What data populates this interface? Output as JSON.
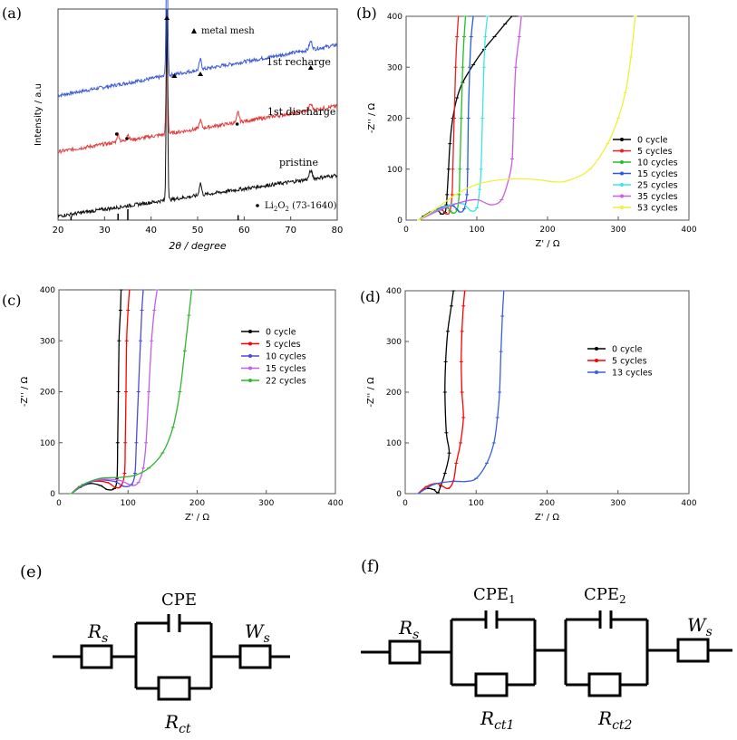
{
  "figure": {
    "panel_labels": [
      "(a)",
      "(b)",
      "(c)",
      "(d)",
      "(e)",
      "(f)"
    ]
  },
  "chart_data": [
    {
      "panel": "(a)",
      "type": "line",
      "title": "",
      "xlabel": "2θ / degree",
      "ylabel": "Intensity / a.u",
      "xlim": [
        20,
        80
      ],
      "xticks": [
        20,
        30,
        40,
        50,
        60,
        70,
        80
      ],
      "series": [
        {
          "name": "1st recharge",
          "color": "#3b5bd6",
          "offset": 0.62,
          "slope": 0.0042,
          "peaks": [
            [
              43.4,
              0.62,
              0.25
            ],
            [
              50.6,
              0.05,
              0.35
            ],
            [
              74.3,
              0.04,
              0.45
            ]
          ]
        },
        {
          "name": "1st discharge",
          "color": "#e03c3c",
          "offset": 0.34,
          "slope": 0.0038,
          "peaks": [
            [
              32.9,
              0.04,
              0.35
            ],
            [
              35.0,
              0.03,
              0.35
            ],
            [
              43.4,
              0.45,
              0.25
            ],
            [
              50.6,
              0.04,
              0.35
            ],
            [
              58.7,
              0.05,
              0.35
            ],
            [
              74.3,
              0.03,
              0.45
            ]
          ]
        },
        {
          "name": "pristine",
          "color": "#111111",
          "offset": 0.02,
          "slope": 0.0034,
          "peaks": [
            [
              43.4,
              0.95,
              0.22
            ],
            [
              50.6,
              0.06,
              0.35
            ],
            [
              74.3,
              0.04,
              0.45
            ]
          ]
        }
      ],
      "reference_lines": {
        "name": "Li2O2 (73-1640)",
        "positions": [
          22.8,
          32.9,
          35.0,
          58.7
        ],
        "heights": [
          0.35,
          0.6,
          1.0,
          0.45
        ]
      },
      "annotations": {
        "legend_mesh": "metal mesh",
        "legend_li2o2_prefix": "Li",
        "legend_li2o2_sub1": "2",
        "legend_li2o2_mid": "O",
        "legend_li2o2_sub2": "2",
        "legend_li2o2_suffix": " (73-1640)",
        "mesh_markers": [
          [
            43.4,
            "top"
          ],
          [
            45.0,
            "recharge"
          ],
          [
            50.6,
            "recharge"
          ],
          [
            74.3,
            "recharge"
          ]
        ],
        "li2o2_markers": [
          [
            32.6,
            "discharge"
          ],
          [
            34.8,
            "discharge"
          ],
          [
            58.5,
            "discharge"
          ]
        ]
      }
    },
    {
      "panel": "(b)",
      "type": "line",
      "xlabel": "Z' / Ω",
      "ylabel": "-Z'' / Ω",
      "xlim": [
        0,
        400
      ],
      "ylim": [
        0,
        400
      ],
      "xticks": [
        0,
        100,
        200,
        300,
        400
      ],
      "yticks": [
        0,
        100,
        200,
        300,
        400
      ],
      "series": [
        {
          "name": "0 cycle",
          "color": "#000000",
          "x": [
            18,
            25,
            35,
            45,
            50,
            55,
            57,
            58,
            60,
            62,
            66,
            72,
            80,
            95,
            110,
            125,
            140,
            150,
            155
          ],
          "y": [
            0,
            8,
            16,
            18,
            12,
            15,
            30,
            50,
            100,
            150,
            200,
            240,
            270,
            305,
            335,
            360,
            385,
            400,
            400
          ]
        },
        {
          "name": "5 cycles",
          "color": "#e82020",
          "x": [
            18,
            28,
            40,
            50,
            58,
            62,
            65,
            66,
            68,
            70,
            72,
            74
          ],
          "y": [
            0,
            10,
            18,
            20,
            12,
            18,
            50,
            100,
            200,
            300,
            360,
            400
          ]
        },
        {
          "name": "10 cycles",
          "color": "#22c122",
          "x": [
            18,
            30,
            45,
            58,
            66,
            72,
            75,
            76,
            78,
            80,
            82,
            84
          ],
          "y": [
            0,
            12,
            22,
            24,
            14,
            20,
            50,
            100,
            200,
            300,
            360,
            400
          ]
        },
        {
          "name": "15 cycles",
          "color": "#2b5ad6",
          "x": [
            18,
            35,
            52,
            66,
            76,
            82,
            86,
            87,
            88,
            90,
            92,
            95
          ],
          "y": [
            0,
            14,
            26,
            28,
            16,
            22,
            50,
            100,
            200,
            300,
            360,
            400
          ]
        },
        {
          "name": "25 cycles",
          "color": "#3de6e6",
          "x": [
            18,
            40,
            62,
            80,
            92,
            100,
            104,
            106,
            108,
            110,
            112,
            115
          ],
          "y": [
            0,
            16,
            30,
            32,
            18,
            24,
            60,
            100,
            200,
            300,
            360,
            400
          ]
        },
        {
          "name": "35 cycles",
          "color": "#c85ee0",
          "x": [
            18,
            45,
            75,
            100,
            120,
            135,
            145,
            150,
            152,
            155,
            160,
            163
          ],
          "y": [
            0,
            18,
            34,
            40,
            30,
            40,
            80,
            120,
            200,
            300,
            360,
            400
          ]
        },
        {
          "name": "53 cycles",
          "color": "#f0f03c",
          "x": [
            18,
            40,
            70,
            100,
            140,
            180,
            210,
            230,
            260,
            285,
            300,
            310,
            318,
            324
          ],
          "y": [
            0,
            20,
            50,
            70,
            80,
            80,
            75,
            78,
            100,
            150,
            200,
            250,
            320,
            400
          ]
        }
      ]
    },
    {
      "panel": "(c)",
      "type": "line",
      "xlabel": "Z' / Ω",
      "ylabel": "-Z'' / Ω",
      "xlim": [
        0,
        400
      ],
      "ylim": [
        0,
        400
      ],
      "xticks": [
        0,
        100,
        200,
        300,
        400
      ],
      "yticks": [
        0,
        100,
        200,
        300,
        400
      ],
      "series": [
        {
          "name": "0 cycle",
          "color": "#000000",
          "x": [
            18,
            30,
            45,
            60,
            70,
            80,
            84,
            85,
            86,
            87,
            89,
            90
          ],
          "y": [
            0,
            12,
            20,
            16,
            8,
            10,
            30,
            100,
            200,
            300,
            360,
            400
          ]
        },
        {
          "name": "5 cycles",
          "color": "#ff0000",
          "x": [
            18,
            30,
            50,
            70,
            82,
            90,
            95,
            96,
            97,
            98,
            100,
            102
          ],
          "y": [
            0,
            14,
            24,
            22,
            12,
            15,
            40,
            100,
            200,
            300,
            360,
            400
          ]
        },
        {
          "name": "10 cycles",
          "color": "#4a4adf",
          "x": [
            18,
            35,
            55,
            80,
            95,
            105,
            110,
            112,
            115,
            118,
            120,
            122
          ],
          "y": [
            0,
            16,
            26,
            24,
            14,
            18,
            40,
            100,
            200,
            300,
            360,
            400
          ]
        },
        {
          "name": "15 cycles",
          "color": "#c060e8",
          "x": [
            18,
            35,
            60,
            88,
            105,
            115,
            122,
            126,
            130,
            134,
            138,
            142
          ],
          "y": [
            0,
            18,
            28,
            26,
            16,
            22,
            50,
            100,
            200,
            300,
            360,
            400
          ]
        },
        {
          "name": "22 cycles",
          "color": "#2fb52f",
          "x": [
            18,
            35,
            60,
            90,
            110,
            130,
            150,
            165,
            175,
            182,
            188,
            192
          ],
          "y": [
            0,
            18,
            30,
            32,
            36,
            50,
            80,
            130,
            200,
            280,
            350,
            400
          ]
        }
      ]
    },
    {
      "panel": "(d)",
      "type": "line",
      "xlabel": "Z' / Ω",
      "ylabel": "-Z'' / Ω",
      "xlim": [
        0,
        400
      ],
      "ylim": [
        0,
        400
      ],
      "xticks": [
        0,
        100,
        200,
        300,
        400
      ],
      "yticks": [
        0,
        100,
        200,
        300,
        400
      ],
      "series": [
        {
          "name": "0 cycle",
          "color": "#000000",
          "x": [
            18,
            30,
            40,
            46,
            50,
            56,
            62,
            58,
            56,
            57,
            60,
            65,
            68
          ],
          "y": [
            0,
            10,
            8,
            2,
            15,
            40,
            80,
            120,
            200,
            260,
            320,
            370,
            400
          ]
        },
        {
          "name": "5 cycles",
          "color": "#ff0000",
          "x": [
            18,
            30,
            45,
            60,
            68,
            72,
            78,
            82,
            80,
            79,
            80,
            82,
            84
          ],
          "y": [
            0,
            14,
            20,
            10,
            25,
            60,
            100,
            150,
            200,
            260,
            320,
            370,
            400
          ]
        },
        {
          "name": "13 cycles",
          "color": "#3a5fe0",
          "x": [
            18,
            40,
            65,
            85,
            100,
            115,
            125,
            130,
            133,
            135,
            137,
            139
          ],
          "y": [
            0,
            18,
            24,
            24,
            30,
            60,
            100,
            150,
            200,
            280,
            350,
            400
          ]
        }
      ]
    }
  ],
  "circuits": {
    "e": {
      "rs": "R",
      "rs_sub": "s",
      "cpe": "CPE",
      "ws": "W",
      "ws_sub": "s",
      "rct": "R",
      "rct_sub": "ct"
    },
    "f": {
      "rs": "R",
      "rs_sub": "s",
      "cpe1": "CPE",
      "cpe1_sub": "1",
      "cpe2": "CPE",
      "cpe2_sub": "2",
      "ws": "W",
      "ws_sub": "s",
      "rct1": "R",
      "rct1_sub": "ct1",
      "rct2": "R",
      "rct2_sub": "ct2"
    }
  }
}
